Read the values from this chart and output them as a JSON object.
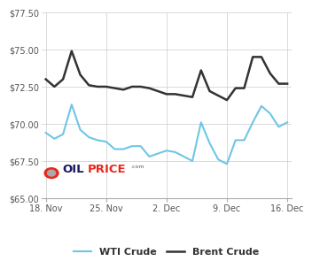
{
  "wti_x": [
    0,
    1,
    2,
    3,
    4,
    5,
    6,
    7,
    8,
    9,
    10,
    11,
    12,
    13,
    14,
    15,
    16,
    17,
    18,
    19,
    20,
    21,
    22,
    23,
    24,
    25,
    26,
    27,
    28
  ],
  "wti_y": [
    69.4,
    69.0,
    69.3,
    71.3,
    69.6,
    69.1,
    68.9,
    68.8,
    68.3,
    68.3,
    68.5,
    68.5,
    67.8,
    68.0,
    68.2,
    68.1,
    67.8,
    67.5,
    70.1,
    68.7,
    67.6,
    67.3,
    68.9,
    68.9,
    70.1,
    71.2,
    70.7,
    69.8,
    70.1
  ],
  "brent_x": [
    0,
    1,
    2,
    3,
    4,
    5,
    6,
    7,
    8,
    9,
    10,
    11,
    12,
    13,
    14,
    15,
    16,
    17,
    18,
    19,
    20,
    21,
    22,
    23,
    24,
    25,
    26,
    27,
    28
  ],
  "brent_y": [
    73.0,
    72.5,
    73.0,
    74.9,
    73.3,
    72.6,
    72.5,
    72.5,
    72.4,
    72.3,
    72.5,
    72.5,
    72.4,
    72.2,
    72.0,
    72.0,
    71.9,
    71.8,
    73.6,
    72.2,
    71.9,
    71.6,
    72.4,
    72.4,
    74.5,
    74.5,
    73.4,
    72.7,
    72.7
  ],
  "xtick_positions": [
    0,
    7,
    14,
    21,
    28
  ],
  "xtick_labels": [
    "18. Nov",
    "25. Nov",
    "2. Dec",
    "9. Dec",
    "16. Dec"
  ],
  "ytick_values": [
    65.0,
    67.5,
    70.0,
    72.5,
    75.0,
    77.5
  ],
  "ytick_labels": [
    "$65.00",
    "$67.50",
    "$70.00",
    "$72.50",
    "$75.00",
    "$77.50"
  ],
  "ylim": [
    65.0,
    77.5
  ],
  "xlim": [
    -0.5,
    28.5
  ],
  "wti_color": "#6ec6e6",
  "brent_color": "#333333",
  "grid_color": "#cccccc",
  "bg_color": "#ffffff",
  "legend_wti": "WTI Crude",
  "legend_brent": "Brent Crude",
  "oilprice_text_dark": "#1a1a5e",
  "oilprice_text_red": "#e8281e"
}
